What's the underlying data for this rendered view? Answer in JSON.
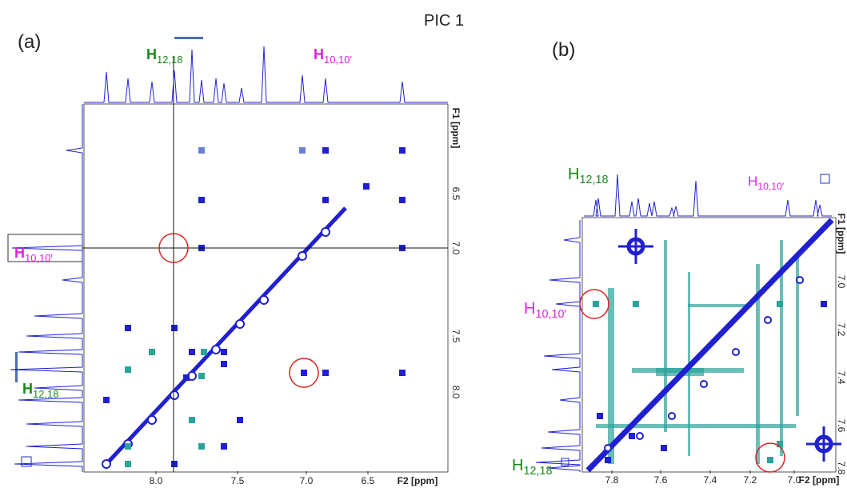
{
  "header": {
    "title": "PIC 1"
  },
  "panel_a": {
    "label": "(a)",
    "peak_labels": [
      {
        "base": "H",
        "sub": "12,18"
      },
      {
        "base": "H",
        "sub": "10,10′"
      },
      {
        "base": "H",
        "sub": "10,10′"
      },
      {
        "base": "H",
        "sub": "12,18"
      }
    ],
    "f1_axis": {
      "title": "F1 [ppm]",
      "ticks": [
        "6.5",
        "7.0",
        "7.5",
        "8.0"
      ]
    },
    "f2_axis": {
      "title": "F2 [ppm]",
      "ticks": [
        "8.0",
        "7.5",
        "7.0",
        "6.5"
      ]
    }
  },
  "panel_b": {
    "label": "(b)",
    "peak_labels": [
      {
        "base": "H",
        "sub": "12,18"
      },
      {
        "base": "H",
        "sub": "10,10′"
      },
      {
        "base": "H",
        "sub": "10,10′"
      },
      {
        "base": "H",
        "sub": "12,18"
      }
    ],
    "f1_axis": {
      "title": "F1 [ppm]",
      "ticks": [
        "7.0",
        "7.2",
        "7.4",
        "7.6",
        "7.8"
      ]
    },
    "f2_axis": {
      "title": "F2 [ppm]",
      "ticks": [
        "7.8",
        "7.6",
        "7.4",
        "7.2",
        "7.0"
      ]
    }
  }
}
